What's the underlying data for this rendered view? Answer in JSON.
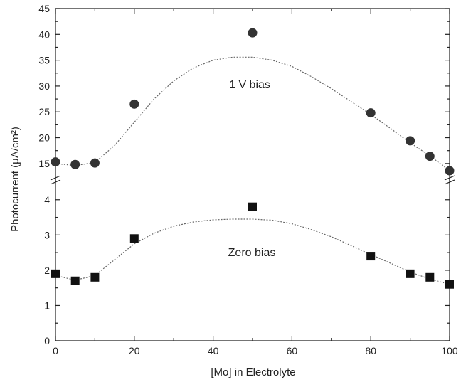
{
  "chart_data": {
    "type": "scatter",
    "xlabel": "[Mo] in Electrolyte",
    "ylabel": "Photocurrent (μA/cm²)",
    "xlim": [
      0,
      100
    ],
    "x_ticks": [
      0,
      20,
      40,
      60,
      80,
      100
    ],
    "ylim": [
      0,
      45
    ],
    "y_axis_break": {
      "lower_range": [
        0,
        4.5
      ],
      "upper_range": [
        12.5,
        45
      ]
    },
    "y_ticks_lower": [
      0,
      1,
      2,
      3,
      4
    ],
    "y_ticks_upper": [
      15,
      20,
      25,
      30,
      35,
      40,
      45
    ],
    "grid": false,
    "series": [
      {
        "name": "1 V bias",
        "marker": "circle",
        "color": "#333333",
        "x": [
          0,
          5,
          10,
          20,
          50,
          80,
          90,
          95,
          100
        ],
        "y": [
          15.3,
          14.8,
          15.1,
          26.5,
          40.3,
          24.8,
          19.4,
          16.4,
          13.6
        ],
        "fit_x": [
          0,
          5,
          10,
          15,
          20,
          25,
          30,
          35,
          40,
          45,
          50,
          55,
          60,
          65,
          70,
          75,
          80,
          85,
          90,
          95,
          100
        ],
        "fit_y": [
          15.0,
          14.6,
          15.2,
          18.5,
          23.0,
          27.5,
          31.0,
          33.5,
          35.0,
          35.6,
          35.6,
          35.0,
          33.8,
          31.8,
          29.5,
          27.0,
          24.5,
          21.8,
          19.0,
          16.5,
          13.6
        ]
      },
      {
        "name": "Zero bias",
        "marker": "square",
        "color": "#111111",
        "x": [
          0,
          5,
          10,
          20,
          50,
          80,
          90,
          95,
          100
        ],
        "y": [
          1.9,
          1.7,
          1.8,
          2.9,
          3.8,
          2.4,
          1.9,
          1.8,
          1.6
        ],
        "fit_x": [
          0,
          5,
          10,
          15,
          20,
          25,
          30,
          35,
          40,
          45,
          50,
          55,
          60,
          65,
          70,
          75,
          80,
          85,
          90,
          95,
          100
        ],
        "fit_y": [
          1.85,
          1.72,
          1.85,
          2.3,
          2.75,
          3.05,
          3.25,
          3.37,
          3.43,
          3.45,
          3.45,
          3.42,
          3.32,
          3.15,
          2.95,
          2.7,
          2.45,
          2.2,
          1.95,
          1.75,
          1.6
        ]
      }
    ]
  }
}
